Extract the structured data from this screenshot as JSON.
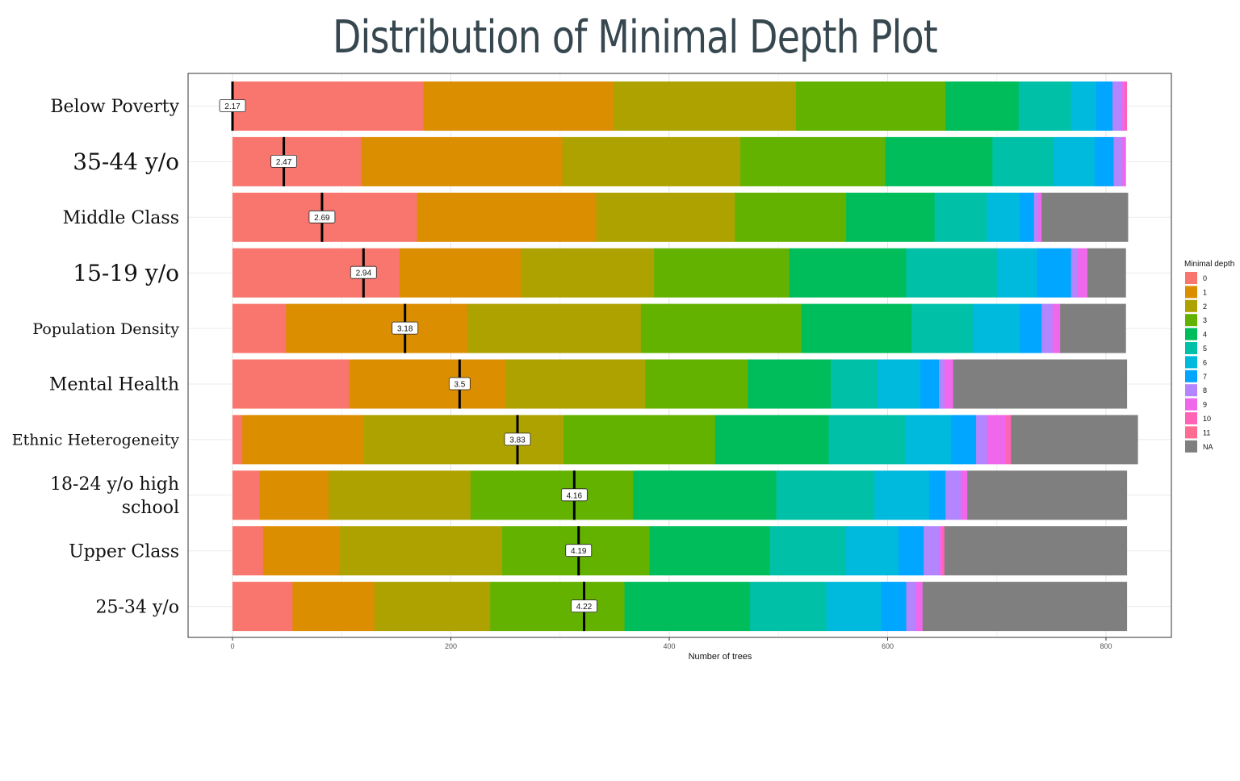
{
  "chart_data": {
    "type": "bar",
    "title": "Distribution of Minimal Depth Plot",
    "xlabel": "Number of trees",
    "ylabel": "",
    "xlim": [
      -20,
      860
    ],
    "xticks": [
      0,
      200,
      400,
      600,
      800
    ],
    "legend": {
      "title": "Minimal depth",
      "position": "right",
      "entries": [
        "0",
        "1",
        "2",
        "3",
        "4",
        "5",
        "6",
        "7",
        "8",
        "9",
        "10",
        "11",
        "NA"
      ]
    },
    "colors": [
      "#F8766D",
      "#DB8E00",
      "#AEA200",
      "#64B200",
      "#00BD5C",
      "#00C1A7",
      "#00BADE",
      "#00A6FF",
      "#B385FF",
      "#EF67EB",
      "#FF63B6",
      "#FF6C91",
      "#7F7F7F"
    ],
    "grid": true,
    "categories": [
      "Below Poverty",
      "35-44 y/o",
      "Middle Class",
      "15-19 y/o",
      "Population Density",
      "Mental Health",
      "Ethnic Heterogeneity",
      "18-24 y/o high school",
      "Upper Class",
      "25-34 y/o"
    ],
    "category_label_sizes": [
      22,
      28,
      22,
      28,
      19,
      22,
      19,
      22,
      22,
      22
    ],
    "mean_min_depth": [
      "2.17",
      "2.47",
      "2.69",
      "2.94",
      "3.18",
      "3.5",
      "3.83",
      "4.16",
      "4.19",
      "4.22"
    ],
    "mean_marker_x": [
      0,
      47,
      82,
      120,
      158,
      208,
      261,
      313,
      317,
      322
    ],
    "series": [
      {
        "depth": "0",
        "values": [
          175,
          118,
          169,
          153,
          49,
          107,
          9,
          25,
          28,
          55
        ]
      },
      {
        "depth": "1",
        "values": [
          174,
          184,
          164,
          111,
          166,
          143,
          111,
          63,
          70,
          75
        ]
      },
      {
        "depth": "2",
        "values": [
          167,
          163,
          127,
          122,
          159,
          128,
          183,
          130,
          149,
          106
        ]
      },
      {
        "depth": "3",
        "values": [
          137,
          133,
          102,
          124,
          147,
          94,
          139,
          149,
          135,
          123
        ]
      },
      {
        "depth": "4",
        "values": [
          67,
          98,
          81,
          107,
          101,
          76,
          104,
          131,
          110,
          115
        ]
      },
      {
        "depth": "5",
        "values": [
          48,
          56,
          48,
          83,
          56,
          43,
          70,
          90,
          70,
          70
        ]
      },
      {
        "depth": "6",
        "values": [
          23,
          38,
          30,
          37,
          43,
          39,
          42,
          50,
          48,
          50
        ]
      },
      {
        "depth": "7",
        "values": [
          15,
          17,
          13,
          31,
          20,
          17,
          23,
          15,
          23,
          23
        ]
      },
      {
        "depth": "8",
        "values": [
          8,
          8,
          4,
          6,
          10,
          5,
          10,
          14,
          14,
          9
        ]
      },
      {
        "depth": "9",
        "values": [
          3,
          3,
          3,
          9,
          7,
          8,
          17,
          6,
          3,
          6
        ]
      },
      {
        "depth": "10",
        "values": [
          2,
          0,
          0,
          0,
          0,
          0,
          5,
          0,
          2,
          0
        ]
      },
      {
        "depth": "11",
        "values": [
          0,
          0,
          0,
          0,
          0,
          0,
          0,
          0,
          0,
          0
        ]
      },
      {
        "depth": "NA",
        "values": [
          0,
          0,
          79,
          35,
          60,
          159,
          116,
          146,
          167,
          187
        ]
      }
    ]
  }
}
